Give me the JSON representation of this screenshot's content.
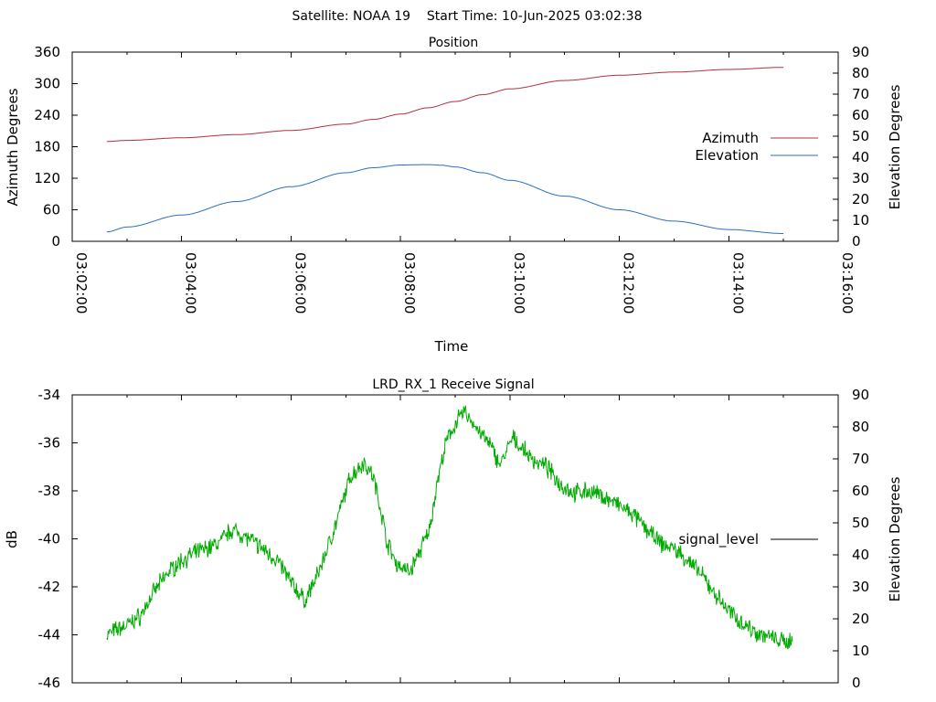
{
  "header": {
    "title": "Satellite: NOAA 19    Start Time: 10-Jun-2025 03:02:38"
  },
  "colors": {
    "azimuth": "#b03040",
    "elevation": "#2a6fc0",
    "signal": "#00aa00",
    "legend_signal": "#000000"
  },
  "chart_data": [
    {
      "type": "line",
      "title": "Position",
      "xlabel": "Time",
      "ylabel": "Azimuth Degrees",
      "y2label": "Elevation Degrees",
      "xlim": [
        0,
        840
      ],
      "ylim": [
        0,
        360
      ],
      "y2lim": [
        0,
        90
      ],
      "xticks": [
        0,
        120,
        240,
        360,
        480,
        600,
        720,
        840
      ],
      "xtick_labels": [
        "03:02:00",
        "03:04:00",
        "03:06:00",
        "03:08:00",
        "03:10:00",
        "03:12:00",
        "03:14:00",
        "03:16:00"
      ],
      "yticks": [
        "360",
        "300",
        "240",
        "180",
        "120",
        "60",
        "0"
      ],
      "y2ticks": [
        "90",
        "80",
        "70",
        "60",
        "50",
        "40",
        "30",
        "20",
        "10",
        "0"
      ],
      "legend_position": "right",
      "series": [
        {
          "name": "Azimuth",
          "axis": "y",
          "x": [
            38,
            60,
            120,
            180,
            240,
            300,
            330,
            360,
            390,
            420,
            450,
            480,
            540,
            600,
            660,
            720,
            780
          ],
          "values": [
            190,
            192,
            197,
            203,
            211,
            223,
            232,
            242,
            254,
            266,
            279,
            290,
            306,
            316,
            322,
            327,
            331
          ]
        },
        {
          "name": "Elevation",
          "axis": "y2",
          "x": [
            38,
            60,
            120,
            180,
            240,
            300,
            330,
            360,
            390,
            405,
            420,
            450,
            480,
            540,
            600,
            660,
            720,
            780
          ],
          "values": [
            4.5,
            6.8,
            12.5,
            18.9,
            26.0,
            32.6,
            35.0,
            36.3,
            36.5,
            36.2,
            35.4,
            32.6,
            29.0,
            21.5,
            15.0,
            9.6,
            5.6,
            3.7
          ]
        }
      ]
    },
    {
      "type": "line",
      "title": "LRD_RX_1 Receive Signal",
      "xlabel": "",
      "ylabel": "dB",
      "y2label": "Elevation Degrees",
      "xlim": [
        0,
        840
      ],
      "ylim": [
        -46,
        -34
      ],
      "y2lim": [
        0,
        90
      ],
      "yticks": [
        "-34",
        "-36",
        "-38",
        "-40",
        "-42",
        "-44",
        "-46"
      ],
      "y2ticks": [
        "90",
        "80",
        "70",
        "60",
        "50",
        "40",
        "30",
        "20",
        "10",
        "0"
      ],
      "legend_position": "right",
      "series": [
        {
          "name": "signal_level",
          "x": [
            38,
            48,
            60,
            75,
            90,
            105,
            120,
            140,
            160,
            175,
            190,
            205,
            225,
            240,
            255,
            260,
            268,
            275,
            290,
            305,
            320,
            330,
            338,
            345,
            355,
            370,
            380,
            385,
            392,
            400,
            410,
            420,
            430,
            440,
            450,
            460,
            465,
            470,
            478,
            483,
            488,
            495,
            505,
            520,
            535,
            550,
            565,
            580,
            595,
            615,
            630,
            645,
            660,
            675,
            690,
            705,
            720,
            735,
            750,
            765,
            780,
            790
          ],
          "values": [
            -44.0,
            -43.8,
            -43.6,
            -43.2,
            -42.2,
            -41.4,
            -40.9,
            -40.5,
            -40.2,
            -39.6,
            -39.9,
            -40.3,
            -40.9,
            -41.8,
            -42.6,
            -42.2,
            -41.6,
            -40.9,
            -39.3,
            -37.4,
            -36.8,
            -37.4,
            -38.7,
            -40.1,
            -41.0,
            -41.4,
            -40.6,
            -40.2,
            -39.6,
            -37.7,
            -36.0,
            -35.2,
            -34.7,
            -35.2,
            -35.7,
            -36.2,
            -36.6,
            -36.9,
            -36.2,
            -35.8,
            -36.0,
            -36.3,
            -36.7,
            -37.0,
            -37.7,
            -38.1,
            -38.0,
            -38.2,
            -38.5,
            -39.0,
            -39.6,
            -40.2,
            -40.4,
            -40.9,
            -41.5,
            -42.3,
            -43.0,
            -43.5,
            -43.9,
            -44.1,
            -44.3,
            -44.2
          ]
        }
      ]
    }
  ]
}
